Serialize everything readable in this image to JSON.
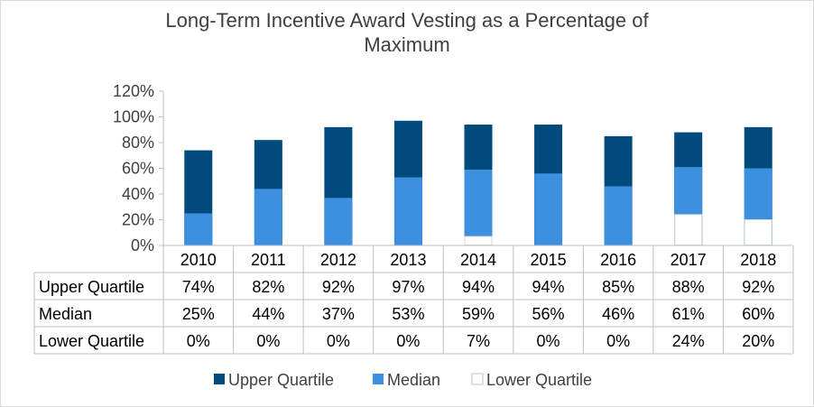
{
  "chart_data": {
    "type": "bar",
    "title": "Long-Term Incentive Award Vesting as a Percentage of Maximum",
    "title_lines": [
      "Long-Term Incentive Award Vesting as a Percentage of",
      "Maximum"
    ],
    "categories": [
      "2010",
      "2011",
      "2012",
      "2013",
      "2014",
      "2015",
      "2016",
      "2017",
      "2018"
    ],
    "series": [
      {
        "name": "Upper Quartile",
        "values": [
          74,
          82,
          92,
          97,
          94,
          94,
          85,
          88,
          92
        ],
        "labels": [
          "74%",
          "82%",
          "92%",
          "97%",
          "94%",
          "94%",
          "85%",
          "88%",
          "92%"
        ],
        "color": "#004a7c"
      },
      {
        "name": "Median",
        "values": [
          25,
          44,
          37,
          53,
          59,
          56,
          46,
          61,
          60
        ],
        "labels": [
          "25%",
          "44%",
          "37%",
          "53%",
          "59%",
          "56%",
          "46%",
          "61%",
          "60%"
        ],
        "color": "#3d8fdf"
      },
      {
        "name": "Lower Quartile",
        "values": [
          0,
          0,
          0,
          0,
          7,
          0,
          0,
          24,
          20
        ],
        "labels": [
          "0%",
          "0%",
          "0%",
          "0%",
          "7%",
          "0%",
          "0%",
          "24%",
          "20%"
        ],
        "color": "#ffffff"
      }
    ],
    "ylim": [
      0,
      120
    ],
    "yticks": [
      "0%",
      "20%",
      "40%",
      "60%",
      "80%",
      "100%",
      "120%"
    ],
    "legend": "bottom",
    "grid": false
  }
}
